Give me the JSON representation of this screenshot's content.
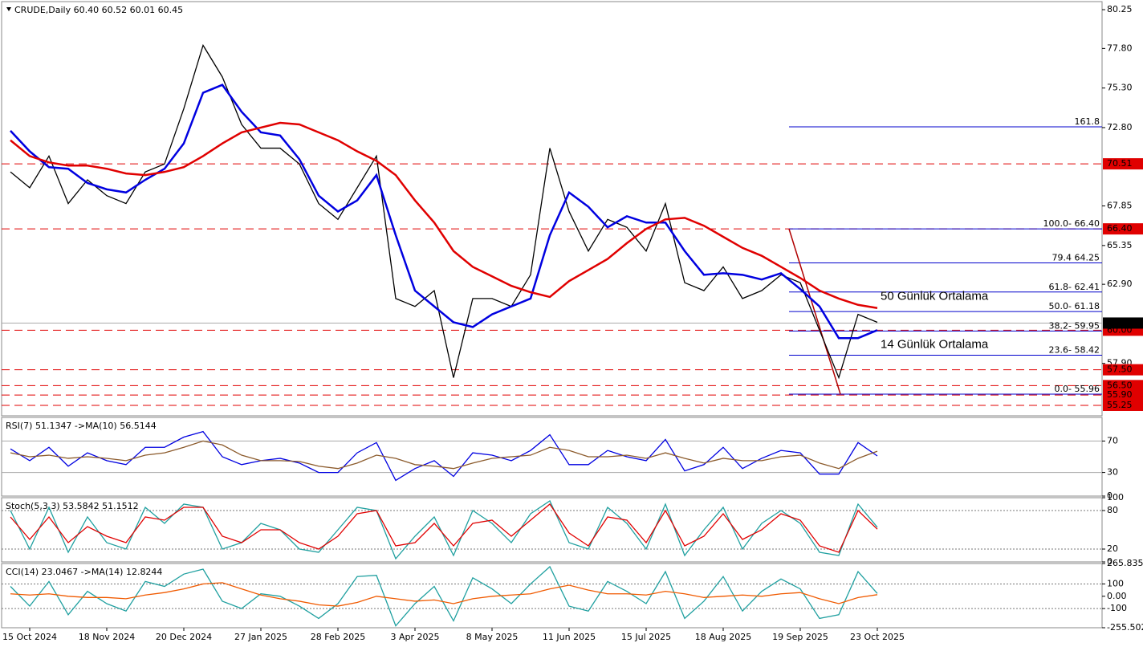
{
  "chart_data": [
    {
      "type": "line",
      "title": "CRUDE,Daily  60.40 60.52 60.01 60.45",
      "categories": [
        null,
        "15 Oct 2024",
        null,
        null,
        null,
        "18 Nov 2024",
        null,
        null,
        null,
        "20 Dec 2024",
        null,
        null,
        null,
        "27 Jan 2025",
        null,
        null,
        null,
        "28 Feb 2025",
        null,
        null,
        null,
        "3 Apr 2025",
        null,
        null,
        null,
        "8 May 2025",
        null,
        null,
        null,
        "11 Jun 2025",
        null,
        null,
        null,
        "15 Jul 2025",
        null,
        null,
        null,
        "18 Aug 2025",
        null,
        null,
        null,
        "19 Sep 2025",
        null,
        null,
        null,
        "23 Oct 2025"
      ],
      "series": [
        {
          "color": "#000000",
          "values": [
            70.0,
            69.0,
            71.0,
            68.0,
            69.5,
            68.5,
            68.0,
            70.0,
            70.5,
            74.0,
            78.0,
            76.0,
            73.0,
            71.5,
            71.5,
            70.5,
            68.0,
            67.0,
            69.0,
            71.0,
            62.0,
            61.5,
            62.5,
            57.0,
            62.0,
            62.0,
            61.5,
            63.5,
            71.5,
            67.5,
            65.0,
            67.0,
            66.5,
            65.0,
            68.0,
            63.0,
            62.5,
            64.0,
            62.0,
            62.5,
            63.5,
            63.0,
            60.0,
            57.0,
            61.0,
            60.5
          ]
        },
        {
          "name": "14 Günlük Ortalama",
          "color": "#0000e0",
          "values": [
            72.6,
            71.3,
            70.3,
            70.2,
            69.3,
            68.9,
            68.7,
            69.5,
            70.2,
            71.8,
            75.0,
            75.5,
            73.8,
            72.5,
            72.3,
            70.8,
            68.5,
            67.5,
            68.2,
            69.8,
            66.0,
            62.5,
            61.5,
            60.5,
            60.2,
            61.0,
            61.5,
            62.0,
            66.0,
            68.7,
            67.8,
            66.5,
            67.2,
            66.8,
            66.8,
            65.0,
            63.5,
            63.6,
            63.5,
            63.2,
            63.6,
            62.6,
            61.5,
            59.5,
            59.5,
            60.0
          ]
        },
        {
          "name": "50 Günlük Ortalama",
          "color": "#e00000",
          "values": [
            72.0,
            71.0,
            70.6,
            70.4,
            70.4,
            70.2,
            69.9,
            69.8,
            70.0,
            70.3,
            71.0,
            71.8,
            72.5,
            72.8,
            73.1,
            73.0,
            72.5,
            72.0,
            71.3,
            70.7,
            69.8,
            68.2,
            66.8,
            65.0,
            64.0,
            63.4,
            62.8,
            62.4,
            62.1,
            63.1,
            63.8,
            64.5,
            65.5,
            66.4,
            67.0,
            67.1,
            66.6,
            65.9,
            65.2,
            64.7,
            64.0,
            63.3,
            62.5,
            62.0,
            61.6,
            61.4
          ]
        }
      ],
      "ylim": [
        54.59,
        80.76
      ],
      "yticks": [
        80.25,
        {
          "value": 77.8,
          "label": "77.80"
        },
        {
          "value": 75.3,
          "label": "75.30"
        },
        {
          "value": 72.8,
          "label": "72.80"
        },
        67.85,
        65.35,
        {
          "value": 62.9,
          "label": "62.90"
        },
        {
          "value": 57.9,
          "label": "57.90"
        }
      ],
      "levels": [
        {
          "value": 70.51,
          "label": "70.51"
        },
        {
          "value": 66.4,
          "label": "66.40"
        },
        {
          "value": 60.0,
          "label": "60.00"
        },
        {
          "value": 57.5,
          "label": "57.50"
        },
        {
          "value": 56.5,
          "label": "56.50"
        },
        {
          "value": 55.9,
          "label": "55.90"
        },
        {
          "value": 55.25,
          "label": "55.25"
        }
      ],
      "level_color": "#e00000",
      "last": {
        "value": 60.45,
        "label": "60.45"
      },
      "fibonacci": [
        {
          "label": "161.8",
          "value": 72.85
        },
        {
          "label": "100.0- 66.40",
          "value": 66.4
        },
        {
          "label": "79.4 64.25",
          "value": 64.25
        },
        {
          "label": "61.8- 62.41",
          "value": 62.41
        },
        {
          "label": "50.0- 61.18",
          "value": 61.18
        },
        {
          "label": "38.2- 59.95",
          "value": 59.95
        },
        {
          "label": "23.6- 58.42",
          "value": 58.42
        },
        {
          "label": "0.0- 55.96",
          "value": 55.96
        }
      ],
      "fib_color": "#0000cc"
    },
    {
      "type": "line",
      "title": "RSI(7) 51.1347  ->MA(10) 56.5144",
      "series": [
        {
          "color": "#0000e0",
          "values": [
            60,
            45,
            62,
            38,
            55,
            45,
            40,
            62,
            62,
            75,
            82,
            50,
            40,
            45,
            48,
            42,
            30,
            30,
            55,
            68,
            20,
            35,
            45,
            25,
            55,
            52,
            45,
            58,
            78,
            40,
            40,
            58,
            50,
            45,
            72,
            32,
            40,
            62,
            35,
            48,
            58,
            55,
            28,
            28,
            68,
            51
          ]
        },
        {
          "color": "#8b5a2b",
          "values": [
            55,
            50,
            52,
            48,
            50,
            48,
            45,
            52,
            55,
            62,
            70,
            65,
            52,
            45,
            45,
            44,
            38,
            35,
            42,
            52,
            48,
            40,
            38,
            35,
            42,
            48,
            50,
            52,
            62,
            58,
            50,
            50,
            52,
            48,
            55,
            48,
            42,
            48,
            45,
            45,
            50,
            52,
            42,
            35,
            48,
            57
          ]
        }
      ],
      "ylim": [
        0,
        100
      ],
      "yticks": [
        0,
        30,
        70
      ],
      "hlines": [
        70,
        30
      ]
    },
    {
      "type": "line",
      "title": "Stoch(5,3,3) 53.5842 51.1512",
      "series": [
        {
          "color": "#20a0a0",
          "values": [
            80,
            20,
            85,
            15,
            70,
            30,
            20,
            85,
            60,
            90,
            85,
            20,
            30,
            60,
            50,
            20,
            15,
            50,
            85,
            80,
            5,
            40,
            70,
            10,
            80,
            60,
            30,
            75,
            95,
            30,
            20,
            85,
            60,
            20,
            90,
            10,
            50,
            85,
            20,
            60,
            80,
            60,
            15,
            10,
            90,
            54
          ]
        },
        {
          "color": "#e00000",
          "values": [
            70,
            35,
            70,
            30,
            55,
            40,
            30,
            70,
            65,
            85,
            85,
            40,
            30,
            50,
            50,
            30,
            20,
            40,
            75,
            80,
            25,
            30,
            60,
            25,
            60,
            65,
            40,
            65,
            90,
            45,
            25,
            70,
            65,
            30,
            80,
            25,
            40,
            75,
            35,
            50,
            75,
            65,
            25,
            15,
            80,
            51
          ]
        }
      ],
      "ylim": [
        0,
        100
      ],
      "yticks": [
        0,
        20,
        80,
        100
      ],
      "hlines": [
        80,
        20
      ]
    },
    {
      "type": "line",
      "title": "CCI(14) 23.0467  ->MA(14) 12.8244",
      "series": [
        {
          "color": "#20a0a0",
          "values": [
            80,
            -80,
            120,
            -150,
            40,
            -60,
            -120,
            120,
            80,
            180,
            220,
            -40,
            -100,
            20,
            0,
            -80,
            -180,
            -60,
            160,
            170,
            -240,
            -60,
            80,
            -200,
            150,
            60,
            -60,
            100,
            240,
            -80,
            -120,
            120,
            40,
            -60,
            200,
            -180,
            -40,
            160,
            -120,
            40,
            140,
            60,
            -180,
            -150,
            200,
            23
          ]
        },
        {
          "color": "#f05a00",
          "values": [
            20,
            10,
            20,
            0,
            -10,
            -10,
            -20,
            10,
            30,
            60,
            100,
            110,
            60,
            10,
            -20,
            -40,
            -70,
            -80,
            -50,
            0,
            -20,
            -40,
            -30,
            -60,
            -20,
            0,
            10,
            20,
            60,
            90,
            50,
            20,
            20,
            10,
            40,
            20,
            -10,
            0,
            10,
            0,
            20,
            30,
            -20,
            -60,
            -10,
            13
          ]
        }
      ],
      "ylim": [
        -255.502,
        265.835
      ],
      "yticks": [
        265.835,
        100,
        {
          "value": 0,
          "label": "0.00"
        },
        -100,
        -255.502
      ],
      "hlines": [
        100,
        -100
      ]
    }
  ]
}
